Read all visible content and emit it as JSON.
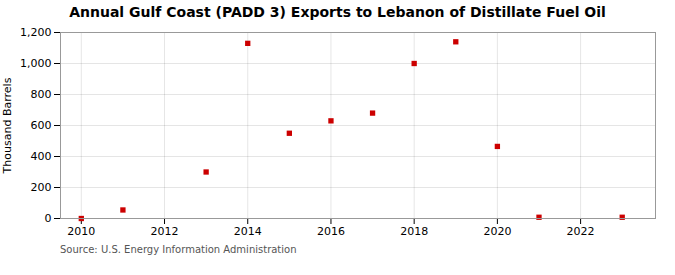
{
  "chart_data": {
    "type": "scatter",
    "title": "Annual Gulf Coast (PADD 3) Exports to Lebanon of Distillate Fuel Oil",
    "ylabel": "Thousand Barrels",
    "source": "Source: U.S. Energy Information Administration",
    "x": [
      2010,
      2011,
      2013,
      2014,
      2015,
      2016,
      2017,
      2018,
      2019,
      2020,
      2021,
      2023
    ],
    "values": [
      0,
      55,
      300,
      1130,
      550,
      630,
      680,
      1000,
      1140,
      465,
      8,
      8
    ],
    "color": "#cc0000",
    "marker": "square",
    "xlim": [
      2009.5,
      2023.8
    ],
    "xticks": [
      2010,
      2012,
      2014,
      2016,
      2018,
      2020,
      2022
    ],
    "ylim": [
      0,
      1200
    ],
    "yticks": [
      0,
      200,
      400,
      600,
      800,
      {
        "value": 1000,
        "label": "1,000"
      },
      {
        "value": 1200,
        "label": "1,200"
      }
    ],
    "grid": true
  }
}
